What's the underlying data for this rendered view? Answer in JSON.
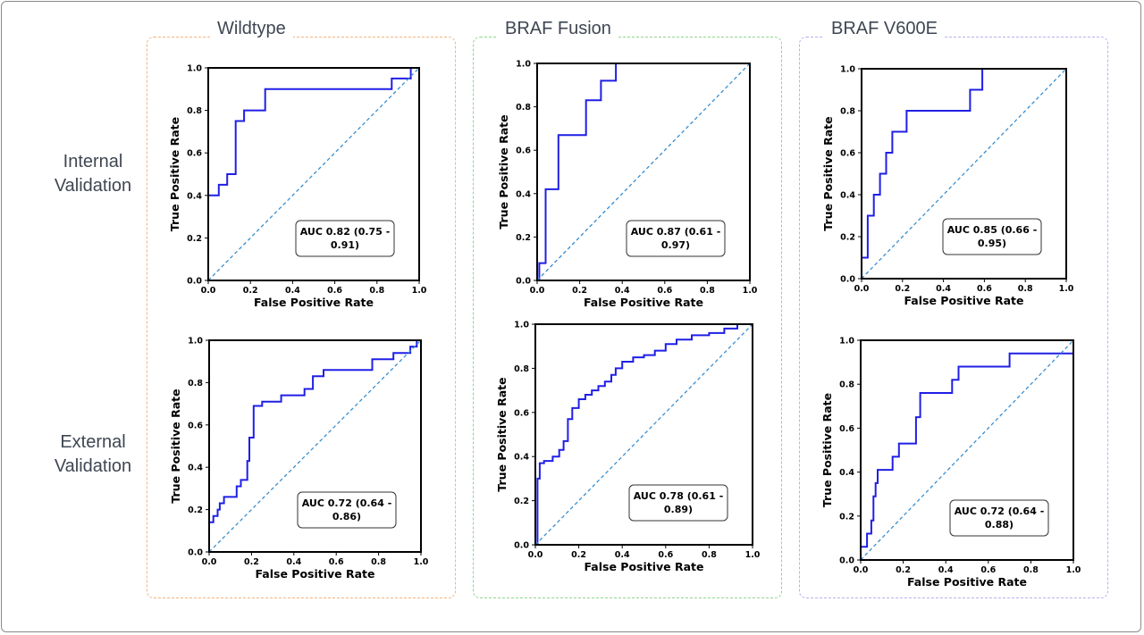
{
  "column_titles": [
    "Wildtype",
    "BRAF Fusion",
    "BRAF V600E"
  ],
  "row_labels": [
    {
      "line1": "Internal",
      "line2": "Validation"
    },
    {
      "line1": "External",
      "line2": "Validation"
    }
  ],
  "colors": {
    "wildtype_border": "#f5b37a",
    "fusion_border": "#8fd68a",
    "v600e_border": "#b3b3ee",
    "roc_curve": "#1f1fe6",
    "chance_line": "#3a8fd0",
    "frame": "#8a8a8a"
  },
  "chart_data": [
    {
      "type": "line",
      "panel": "wildtype-internal",
      "xlabel": "False Positive Rate",
      "ylabel": "True Positive Rate",
      "xlim": [
        0,
        1
      ],
      "ylim": [
        0,
        1
      ],
      "xticks": [
        "0.0",
        "0.2",
        "0.4",
        "0.6",
        "0.8",
        "1.0"
      ],
      "yticks": [
        "0.0",
        "0.2",
        "0.4",
        "0.6",
        "0.8",
        "1.0"
      ],
      "annotation": {
        "line1": "AUC  0.82 (0.75 -",
        "line2": "0.91)"
      },
      "series": [
        {
          "x": [
            0,
            0,
            0.02,
            0.02,
            0.05,
            0.05,
            0.09,
            0.09,
            0.09,
            0.13,
            0.13,
            0.17,
            0.17,
            0.27,
            0.27,
            0.87,
            0.87,
            0.96,
            0.96,
            1.0
          ],
          "y": [
            0,
            0.4,
            0.4,
            0.4,
            0.4,
            0.45,
            0.45,
            0.45,
            0.5,
            0.5,
            0.75,
            0.75,
            0.8,
            0.8,
            0.9,
            0.9,
            0.95,
            0.95,
            1.0,
            1.0
          ]
        },
        {
          "x": [
            0,
            1
          ],
          "y": [
            0,
            1
          ],
          "style": "dashed"
        }
      ]
    },
    {
      "type": "line",
      "panel": "fusion-internal",
      "xlabel": "False Positive Rate",
      "ylabel": "True Positive Rate",
      "xlim": [
        0,
        1
      ],
      "ylim": [
        0,
        1
      ],
      "xticks": [
        "0.0",
        "0.2",
        "0.4",
        "0.6",
        "0.8",
        "1.0"
      ],
      "yticks": [
        "0.0",
        "0.2",
        "0.4",
        "0.6",
        "0.8",
        "1.0"
      ],
      "annotation": {
        "line1": "AUC  0.87 (0.61 -",
        "line2": "0.97)"
      },
      "series": [
        {
          "x": [
            0,
            0.01,
            0.01,
            0.04,
            0.04,
            0.1,
            0.1,
            0.23,
            0.23,
            0.3,
            0.3,
            0.37,
            0.37,
            1.0
          ],
          "y": [
            0,
            0,
            0.08,
            0.08,
            0.42,
            0.42,
            0.67,
            0.67,
            0.83,
            0.83,
            0.92,
            0.92,
            1.0,
            1.0
          ]
        },
        {
          "x": [
            0,
            1
          ],
          "y": [
            0,
            1
          ],
          "style": "dashed"
        }
      ]
    },
    {
      "type": "line",
      "panel": "v600e-internal",
      "xlabel": "False Positive Rate",
      "ylabel": "True Positive Rate",
      "xlim": [
        0,
        1
      ],
      "ylim": [
        0,
        1
      ],
      "xticks": [
        "0.0",
        "0.2",
        "0.4",
        "0.6",
        "0.8",
        "1.0"
      ],
      "yticks": [
        "0.0",
        "0.2",
        "0.4",
        "0.6",
        "0.8",
        "1.0"
      ],
      "annotation": {
        "line1": "AUC  0.85 (0.66 -",
        "line2": "0.95)"
      },
      "series": [
        {
          "x": [
            0,
            0,
            0.03,
            0.03,
            0.06,
            0.06,
            0.09,
            0.09,
            0.12,
            0.12,
            0.15,
            0.15,
            0.22,
            0.22,
            0.53,
            0.53,
            0.59,
            0.59,
            1.0
          ],
          "y": [
            0,
            0.1,
            0.1,
            0.3,
            0.3,
            0.4,
            0.4,
            0.5,
            0.5,
            0.6,
            0.6,
            0.7,
            0.7,
            0.8,
            0.8,
            0.9,
            0.9,
            1.0,
            1.0
          ]
        },
        {
          "x": [
            0,
            1
          ],
          "y": [
            0,
            1
          ],
          "style": "dashed"
        }
      ]
    },
    {
      "type": "line",
      "panel": "wildtype-external",
      "xlabel": "False Positive Rate",
      "ylabel": "True Positive Rate",
      "xlim": [
        0,
        1
      ],
      "ylim": [
        0,
        1
      ],
      "xticks": [
        "0.0",
        "0.2",
        "0.4",
        "0.6",
        "0.8",
        "1.0"
      ],
      "yticks": [
        "0.0",
        "0.2",
        "0.4",
        "0.6",
        "0.8",
        "1.0"
      ],
      "annotation": {
        "line1": "AUC  0.72 (0.64 -",
        "line2": "0.86)"
      },
      "series": [
        {
          "x": [
            0,
            0,
            0.02,
            0.02,
            0.04,
            0.04,
            0.05,
            0.05,
            0.07,
            0.07,
            0.13,
            0.13,
            0.15,
            0.15,
            0.18,
            0.18,
            0.19,
            0.19,
            0.21,
            0.21,
            0.25,
            0.25,
            0.34,
            0.34,
            0.45,
            0.45,
            0.49,
            0.49,
            0.54,
            0.54,
            0.77,
            0.77,
            0.87,
            0.87,
            0.95,
            0.95,
            0.98,
            0.98,
            1.0
          ],
          "y": [
            0,
            0.14,
            0.14,
            0.17,
            0.17,
            0.2,
            0.2,
            0.23,
            0.23,
            0.26,
            0.26,
            0.31,
            0.31,
            0.34,
            0.34,
            0.43,
            0.43,
            0.54,
            0.54,
            0.69,
            0.69,
            0.71,
            0.71,
            0.74,
            0.74,
            0.77,
            0.77,
            0.83,
            0.83,
            0.86,
            0.86,
            0.91,
            0.91,
            0.94,
            0.94,
            0.97,
            0.97,
            1.0,
            1.0
          ]
        },
        {
          "x": [
            0,
            1
          ],
          "y": [
            0,
            1
          ],
          "style": "dashed"
        }
      ]
    },
    {
      "type": "line",
      "panel": "fusion-external",
      "xlabel": "False Positive Rate",
      "ylabel": "True Positive Rate",
      "xlim": [
        0,
        1
      ],
      "ylim": [
        0,
        1
      ],
      "xticks": [
        "0.0",
        "0.2",
        "0.4",
        "0.6",
        "0.8",
        "1.0"
      ],
      "yticks": [
        "0.0",
        "0.2",
        "0.4",
        "0.6",
        "0.8",
        "1.0"
      ],
      "annotation": {
        "line1": "AUC  0.78 (0.61 -",
        "line2": "0.89)"
      },
      "series": [
        {
          "x": [
            0,
            0.01,
            0.01,
            0.02,
            0.02,
            0.04,
            0.04,
            0.08,
            0.08,
            0.11,
            0.11,
            0.13,
            0.13,
            0.15,
            0.15,
            0.17,
            0.17,
            0.2,
            0.2,
            0.23,
            0.23,
            0.26,
            0.26,
            0.29,
            0.29,
            0.32,
            0.32,
            0.35,
            0.35,
            0.37,
            0.37,
            0.4,
            0.4,
            0.45,
            0.45,
            0.5,
            0.5,
            0.55,
            0.55,
            0.6,
            0.6,
            0.65,
            0.65,
            0.72,
            0.72,
            0.8,
            0.8,
            0.87,
            0.87,
            0.93,
            0.93,
            1.0
          ],
          "y": [
            0,
            0,
            0.3,
            0.3,
            0.37,
            0.37,
            0.38,
            0.38,
            0.4,
            0.4,
            0.43,
            0.43,
            0.47,
            0.47,
            0.57,
            0.57,
            0.62,
            0.62,
            0.66,
            0.66,
            0.68,
            0.68,
            0.7,
            0.7,
            0.72,
            0.72,
            0.74,
            0.74,
            0.77,
            0.77,
            0.8,
            0.8,
            0.83,
            0.83,
            0.85,
            0.85,
            0.86,
            0.86,
            0.88,
            0.88,
            0.91,
            0.91,
            0.93,
            0.93,
            0.95,
            0.95,
            0.96,
            0.96,
            0.98,
            0.98,
            1.0,
            1.0
          ]
        },
        {
          "x": [
            0,
            1
          ],
          "y": [
            0,
            1
          ],
          "style": "dashed"
        }
      ]
    },
    {
      "type": "line",
      "panel": "v600e-external",
      "xlabel": "False Positive Rate",
      "ylabel": "True Positive Rate",
      "xlim": [
        0,
        1
      ],
      "ylim": [
        0,
        1
      ],
      "xticks": [
        "0.0",
        "0.2",
        "0.4",
        "0.6",
        "0.8",
        "1.0"
      ],
      "yticks": [
        "0.0",
        "0.2",
        "0.4",
        "0.6",
        "0.8",
        "1.0"
      ],
      "annotation": {
        "line1": "AUC  0.72 (0.64 -",
        "line2": "0.88)"
      },
      "series": [
        {
          "x": [
            0,
            0,
            0.03,
            0.03,
            0.05,
            0.05,
            0.06,
            0.06,
            0.07,
            0.07,
            0.08,
            0.08,
            0.15,
            0.15,
            0.18,
            0.18,
            0.26,
            0.26,
            0.28,
            0.28,
            0.43,
            0.43,
            0.46,
            0.46,
            0.7,
            0.7,
            1.0
          ],
          "y": [
            0,
            0.06,
            0.06,
            0.12,
            0.12,
            0.18,
            0.18,
            0.29,
            0.29,
            0.35,
            0.35,
            0.41,
            0.41,
            0.47,
            0.47,
            0.53,
            0.53,
            0.65,
            0.65,
            0.76,
            0.76,
            0.82,
            0.82,
            0.88,
            0.88,
            0.94,
            0.94
          ]
        },
        {
          "x": [
            0,
            1
          ],
          "y": [
            0,
            1
          ],
          "style": "dashed"
        }
      ]
    }
  ]
}
